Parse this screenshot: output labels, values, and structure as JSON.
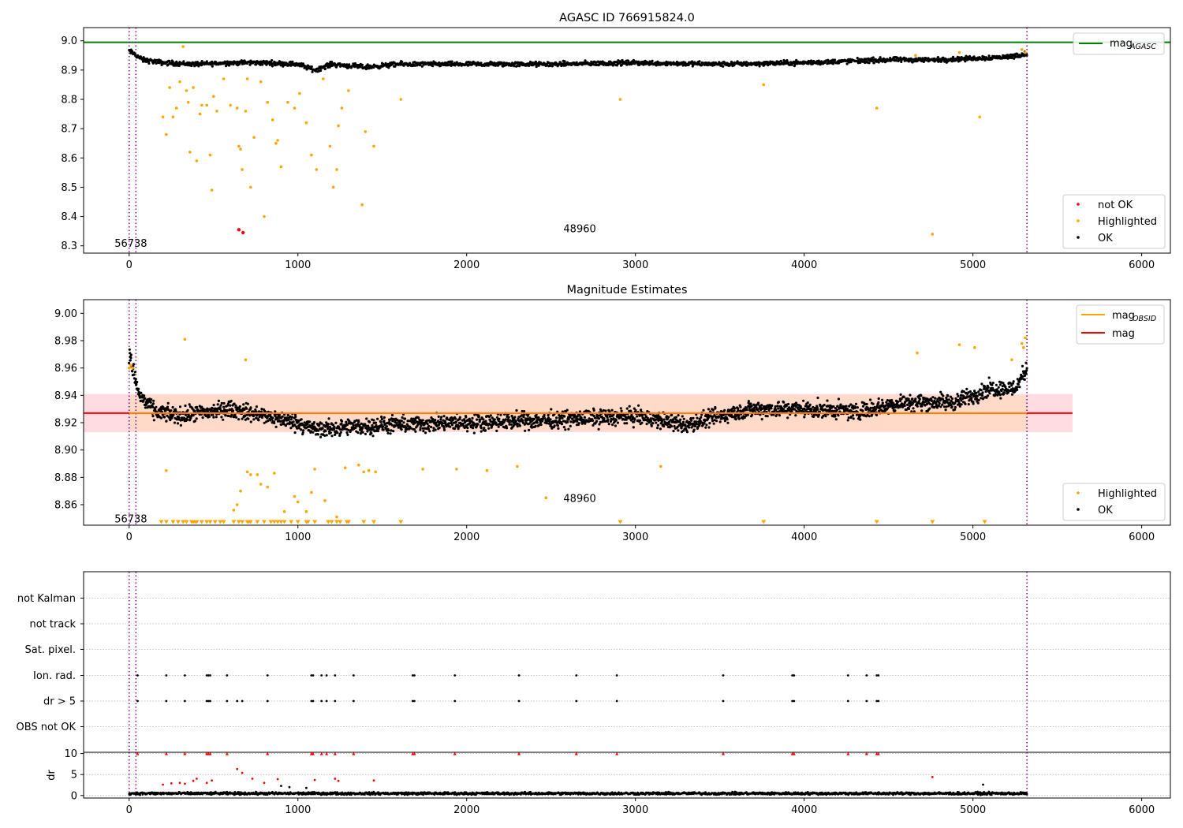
{
  "figure": {
    "colors": {
      "ok": "#000000",
      "highlighted": "#ffa500",
      "not_ok": "#ff0000",
      "agasc_line": "#008000",
      "obsid_line": "#ffa500",
      "mag_line": "#ff0000",
      "interval_line": "#800080",
      "band_outer": "#ffc0cb",
      "band_inner": "#ffd8bd",
      "grid": "#b0b0b0"
    }
  },
  "chart_data": [
    {
      "id": "top",
      "type": "scatter",
      "title": "AGASC ID 766915824.0",
      "xlim": [
        -270,
        6170
      ],
      "ylim": [
        8.275,
        9.045
      ],
      "xticks": [
        0,
        1000,
        2000,
        3000,
        4000,
        5000,
        6000
      ],
      "xtick_labels": [
        "0",
        "1000",
        "2000",
        "3000",
        "4000",
        "5000",
        "6000"
      ],
      "yticks": [
        8.3,
        8.4,
        8.5,
        8.6,
        8.7,
        8.8,
        8.9,
        9.0
      ],
      "ytick_labels": [
        "8.3",
        "8.4",
        "8.5",
        "8.6",
        "8.7",
        "8.8",
        "8.9",
        "9.0"
      ],
      "mag_agasc": 8.995,
      "interval_markers": [
        0,
        40,
        5320
      ],
      "annotations": [
        {
          "text": "56738",
          "x": 10,
          "y": 8.31
        },
        {
          "text": "48960",
          "x": 2670,
          "y": 8.36
        }
      ],
      "legend_upper": {
        "position": "top-right",
        "entries": [
          {
            "label": "mag",
            "subscript": "AGASC",
            "kind": "line",
            "color_key": "agasc_line"
          }
        ]
      },
      "legend_lower": {
        "position": "bottom-right",
        "entries": [
          {
            "label": "not OK",
            "kind": "dot",
            "color_key": "not_ok"
          },
          {
            "label": "Highlighted",
            "kind": "dot",
            "color_key": "highlighted"
          },
          {
            "label": "OK",
            "kind": "dot",
            "color_key": "ok"
          }
        ]
      },
      "ok_series": {
        "name": "OK",
        "x_start": 0,
        "x_end": 5320,
        "n": 1800,
        "y_profile_x": [
          0,
          30,
          80,
          200,
          400,
          600,
          800,
          1000,
          1100,
          1200,
          1400,
          1600,
          2000,
          2500,
          3000,
          3500,
          4000,
          4500,
          4800,
          5000,
          5200,
          5320
        ],
        "y_profile_y": [
          8.965,
          8.955,
          8.935,
          8.925,
          8.92,
          8.925,
          8.925,
          8.92,
          8.9,
          8.92,
          8.91,
          8.92,
          8.92,
          8.92,
          8.925,
          8.92,
          8.925,
          8.935,
          8.935,
          8.94,
          8.945,
          8.955
        ],
        "spread": 0.012
      },
      "highlighted_points": {
        "name": "Highlighted",
        "x": [
          200,
          220,
          240,
          260,
          280,
          300,
          320,
          340,
          350,
          360,
          380,
          400,
          420,
          430,
          460,
          480,
          490,
          500,
          520,
          560,
          600,
          640,
          650,
          660,
          670,
          690,
          700,
          720,
          740,
          780,
          800,
          820,
          850,
          870,
          880,
          900,
          940,
          980,
          1010,
          1050,
          1080,
          1110,
          1150,
          1190,
          1210,
          1230,
          1240,
          1260,
          1300,
          1380,
          1400,
          1450,
          1610,
          2910,
          3760,
          4430,
          4760,
          5040,
          5290,
          5310,
          4660,
          4920
        ],
        "y": [
          8.74,
          8.68,
          8.84,
          8.74,
          8.77,
          8.86,
          8.98,
          8.83,
          8.79,
          8.62,
          8.84,
          8.59,
          8.75,
          8.78,
          8.78,
          8.61,
          8.49,
          8.81,
          8.76,
          8.87,
          8.78,
          8.77,
          8.64,
          8.63,
          8.56,
          8.76,
          8.87,
          8.5,
          8.67,
          8.86,
          8.4,
          8.79,
          8.73,
          8.65,
          8.66,
          8.57,
          8.79,
          8.77,
          8.82,
          8.72,
          8.61,
          8.56,
          8.87,
          8.64,
          8.5,
          8.56,
          8.71,
          8.77,
          8.83,
          8.44,
          8.69,
          8.64,
          8.8,
          8.8,
          8.85,
          8.77,
          8.34,
          8.74,
          8.97,
          8.96,
          8.95,
          8.96
        ]
      },
      "not_ok_points": {
        "name": "not OK",
        "x": [
          650,
          675
        ],
        "y": [
          8.355,
          8.345
        ]
      }
    },
    {
      "id": "mid",
      "type": "scatter",
      "title": "Magnitude Estimates",
      "xlim": [
        -270,
        6170
      ],
      "ylim": [
        8.845,
        9.01
      ],
      "xticks": [
        0,
        1000,
        2000,
        3000,
        4000,
        5000,
        6000
      ],
      "xtick_labels": [
        "0",
        "1000",
        "2000",
        "3000",
        "4000",
        "5000",
        "6000"
      ],
      "yticks": [
        8.86,
        8.88,
        8.9,
        8.92,
        8.94,
        8.96,
        8.98,
        9.0
      ],
      "ytick_labels": [
        "8.86",
        "8.88",
        "8.90",
        "8.92",
        "8.94",
        "8.96",
        "8.98",
        "9.00"
      ],
      "mag_obsid": 8.927,
      "mag": 8.927,
      "band_outer": [
        8.913,
        8.941
      ],
      "band_inner": [
        8.914,
        8.94
      ],
      "band_x": [
        -270,
        5590
      ],
      "interval_markers": [
        0,
        40,
        5320
      ],
      "annotations": [
        {
          "text": "56738",
          "x": 10,
          "y": 8.85
        },
        {
          "text": "48960",
          "x": 2670,
          "y": 8.865
        }
      ],
      "legend_upper": {
        "position": "top-right",
        "entries": [
          {
            "label": "mag",
            "subscript": "OBSID",
            "kind": "line",
            "color_key": "obsid_line"
          },
          {
            "label": "mag",
            "subscript": "",
            "kind": "line",
            "color_key": "mag_line"
          }
        ]
      },
      "legend_lower": {
        "position": "bottom-right",
        "entries": [
          {
            "label": "Highlighted",
            "kind": "dot",
            "color_key": "highlighted"
          },
          {
            "label": "OK",
            "kind": "dot",
            "color_key": "ok"
          }
        ]
      },
      "ok_series": {
        "name": "OK",
        "x_start": 0,
        "x_end": 5320,
        "n": 2600,
        "y_profile_x": [
          0,
          30,
          60,
          150,
          300,
          600,
          800,
          1000,
          1100,
          1500,
          2000,
          2500,
          3000,
          3300,
          3500,
          3700,
          4000,
          4300,
          4600,
          4900,
          5100,
          5250,
          5320
        ],
        "y_profile_y": [
          8.97,
          8.955,
          8.94,
          8.928,
          8.925,
          8.93,
          8.925,
          8.92,
          8.915,
          8.918,
          8.92,
          8.922,
          8.925,
          8.918,
          8.925,
          8.93,
          8.93,
          8.928,
          8.935,
          8.935,
          8.945,
          8.945,
          8.96
        ],
        "spread": 0.009
      },
      "highlighted_points": {
        "name": "Highlighted",
        "x": [
          330,
          690,
          220,
          620,
          640,
          660,
          700,
          720,
          760,
          780,
          820,
          860,
          920,
          980,
          1000,
          1050,
          1080,
          1100,
          1160,
          1230,
          1280,
          1360,
          1390,
          1420,
          1460,
          1740,
          1940,
          2120,
          2300,
          2470,
          3150,
          4670,
          4920,
          5010,
          5230,
          5290,
          5300,
          5310,
          0,
          10,
          20
        ],
        "y": [
          8.981,
          8.966,
          8.885,
          8.856,
          8.86,
          8.87,
          8.884,
          8.882,
          8.882,
          8.875,
          8.873,
          8.883,
          8.855,
          8.866,
          8.862,
          8.855,
          8.869,
          8.886,
          8.863,
          8.851,
          8.887,
          8.889,
          8.884,
          8.885,
          8.884,
          8.886,
          8.886,
          8.885,
          8.888,
          8.865,
          8.888,
          8.971,
          8.977,
          8.975,
          8.966,
          8.978,
          8.975,
          8.982,
          8.96,
          8.962,
          8.96
        ]
      },
      "lower_limit_markers": {
        "name": "Highlighted",
        "y": 8.847,
        "x": [
          190,
          220,
          260,
          290,
          320,
          340,
          370,
          380,
          390,
          400,
          430,
          460,
          480,
          510,
          540,
          560,
          620,
          650,
          670,
          700,
          710,
          720,
          760,
          800,
          840,
          860,
          880,
          900,
          920,
          960,
          1000,
          1050,
          1060,
          1100,
          1180,
          1200,
          1230,
          1250,
          1290,
          1300,
          1390,
          1450,
          1610,
          2910,
          3760,
          4430,
          4760,
          5070
        ]
      }
    },
    {
      "id": "flags",
      "type": "scatter",
      "xlim": [
        -270,
        6170
      ],
      "categories": [
        "not Kalman",
        "not track",
        "Sat. pixel.",
        "Ion. rad.",
        "dr > 5",
        "OBS not OK"
      ],
      "interval_markers": [
        0,
        40,
        5320
      ],
      "ion_rad_x": [
        50,
        220,
        330,
        460,
        470,
        480,
        580,
        820,
        1080,
        1090,
        1140,
        1170,
        1220,
        1330,
        1680,
        1690,
        1930,
        2310,
        2650,
        2890,
        3520,
        3930,
        3940,
        4260,
        4370,
        4430,
        4440
      ],
      "dr5_x": [
        50,
        220,
        330,
        460,
        470,
        480,
        580,
        640,
        670,
        820,
        1080,
        1090,
        1140,
        1170,
        1220,
        1330,
        1680,
        1690,
        1930,
        2310,
        2650,
        2890,
        3520,
        3930,
        3940,
        4260,
        4370,
        4430,
        4440
      ]
    },
    {
      "id": "dr",
      "type": "scatter",
      "xlim": [
        -270,
        6170
      ],
      "ylim": [
        -0.6,
        10.3
      ],
      "ylabel": "dr",
      "yticks": [
        0,
        5,
        10
      ],
      "ytick_labels": [
        "0",
        "5",
        "10"
      ],
      "xticks": [
        0,
        1000,
        2000,
        3000,
        4000,
        5000,
        6000
      ],
      "xtick_labels": [
        "0",
        "1000",
        "2000",
        "3000",
        "4000",
        "5000",
        "6000"
      ],
      "interval_markers": [
        0,
        40,
        5320
      ],
      "ok_series": {
        "name": "OK",
        "x_start": 0,
        "x_end": 5320,
        "n": 1800,
        "y_base": 0.5,
        "spread": 0.45
      },
      "capped_points": {
        "y": 10,
        "x": [
          50,
          220,
          330,
          460,
          470,
          480,
          580,
          820,
          1080,
          1090,
          1140,
          1170,
          1220,
          1330,
          1680,
          1690,
          1930,
          2310,
          2650,
          2890,
          3520,
          3930,
          3940,
          4260,
          4370,
          4430,
          4440
        ]
      },
      "red_points": {
        "x": [
          200,
          250,
          300,
          330,
          380,
          400,
          460,
          490,
          640,
          670,
          730,
          800,
          880,
          1100,
          1220,
          1240,
          1450,
          4760
        ],
        "y": [
          2.6,
          2.9,
          3.0,
          2.8,
          3.5,
          4.0,
          3.0,
          3.6,
          6.3,
          5.4,
          4.0,
          3.0,
          3.9,
          3.7,
          4.0,
          3.5,
          3.6,
          4.4
        ]
      },
      "black_outliers": {
        "x": [
          5060,
          900,
          950,
          1050
        ],
        "y": [
          2.6,
          2.3,
          2.0,
          1.8
        ]
      }
    }
  ]
}
